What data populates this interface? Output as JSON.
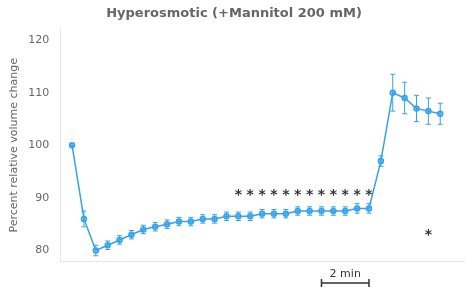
{
  "chart_data": {
    "type": "line",
    "title": "Hyperosmotic (+Mannitol 200 mM)",
    "y_label": "Percent relative volume change",
    "x": [
      0,
      1,
      2,
      3,
      4,
      5,
      6,
      7,
      8,
      9,
      10,
      11,
      12,
      13,
      14,
      15,
      16,
      17,
      18,
      19,
      20,
      21,
      22,
      23,
      24,
      25,
      26,
      27,
      28,
      29,
      30,
      31
    ],
    "values": [
      100,
      86,
      80,
      81,
      82,
      83,
      84,
      84.5,
      85,
      85.5,
      85.5,
      86,
      86,
      86.5,
      86.5,
      86.5,
      87,
      87,
      87,
      87.5,
      87.5,
      87.5,
      87.5,
      87.5,
      88,
      88,
      97,
      110,
      109,
      107,
      106.5,
      106
    ],
    "errors": [
      0,
      1.5,
      1.0,
      0.8,
      0.8,
      0.8,
      0.8,
      0.8,
      0.8,
      0.8,
      0.8,
      0.8,
      0.8,
      0.8,
      0.8,
      0.8,
      0.8,
      0.8,
      0.8,
      0.8,
      0.8,
      0.8,
      0.8,
      0.8,
      0.9,
      0.9,
      1.0,
      3.5,
      3.0,
      2.5,
      2.5,
      2.0
    ],
    "xlim": [
      -1,
      33
    ],
    "ylim": [
      78,
      122
    ],
    "yticks": [
      80,
      90,
      100,
      110,
      120
    ],
    "tick_labels": "y",
    "grid": false,
    "marker": "circle",
    "line_style": "solid",
    "annotations": [
      {
        "text": "*",
        "x": 14,
        "y": 91
      },
      {
        "text": "*",
        "x": 15,
        "y": 91
      },
      {
        "text": "*",
        "x": 16,
        "y": 91
      },
      {
        "text": "*",
        "x": 17,
        "y": 91
      },
      {
        "text": "*",
        "x": 18,
        "y": 91
      },
      {
        "text": "*",
        "x": 19,
        "y": 91
      },
      {
        "text": "*",
        "x": 20,
        "y": 91
      },
      {
        "text": "*",
        "x": 21,
        "y": 91
      },
      {
        "text": "*",
        "x": 22,
        "y": 91
      },
      {
        "text": "*",
        "x": 23,
        "y": 91
      },
      {
        "text": "*",
        "x": 24,
        "y": 91
      },
      {
        "text": "*",
        "x": 25,
        "y": 91
      },
      {
        "text": "*",
        "x": 30,
        "y": 83.5
      }
    ],
    "scale_bar": {
      "x1": 21,
      "x2": 25,
      "label": "2 min"
    }
  }
}
